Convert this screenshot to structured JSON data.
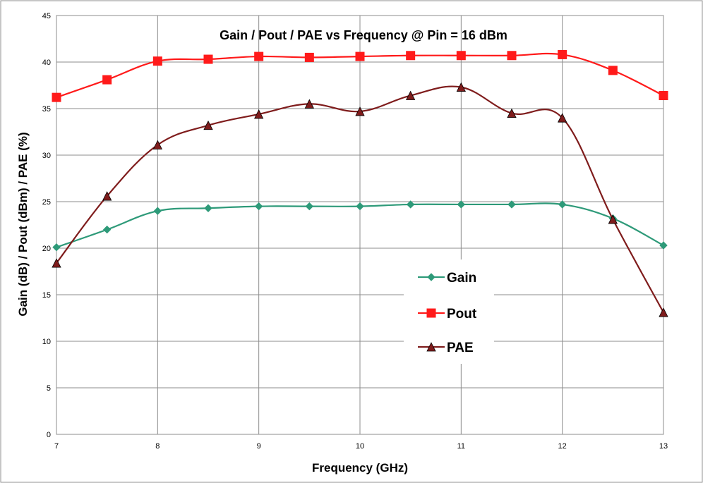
{
  "chart_data": {
    "type": "line",
    "title": "Gain / Pout / PAE vs Frequency @ Pin = 16 dBm",
    "xlabel": "Frequency (GHz)",
    "ylabel": "Gain (dB) / Pout (dBm) / PAE (%)",
    "xlim": [
      7,
      13
    ],
    "ylim": [
      0,
      45
    ],
    "x_ticks": [
      7,
      8,
      9,
      10,
      11,
      12,
      13
    ],
    "y_ticks": [
      0,
      5,
      10,
      15,
      20,
      25,
      30,
      35,
      40,
      45
    ],
    "grid": true,
    "legend_position": "lower-right",
    "x": [
      7,
      7.5,
      8,
      8.5,
      9,
      9.5,
      10,
      10.5,
      11,
      11.5,
      12,
      12.5,
      13
    ],
    "series": [
      {
        "name": "Gain",
        "color": "#2e9a79",
        "marker": "diamond",
        "values": [
          20.1,
          22.0,
          24.0,
          24.3,
          24.5,
          24.5,
          24.5,
          24.7,
          24.7,
          24.7,
          24.7,
          23.2,
          20.3
        ]
      },
      {
        "name": "Pout",
        "color": "#ff1a1a",
        "marker": "square",
        "values": [
          36.2,
          38.1,
          40.1,
          40.3,
          40.6,
          40.5,
          40.6,
          40.7,
          40.7,
          40.7,
          40.8,
          39.1,
          36.4
        ]
      },
      {
        "name": "PAE",
        "color": "#7f1c1c",
        "marker": "triangle",
        "values": [
          18.4,
          25.6,
          31.1,
          33.2,
          34.4,
          35.5,
          34.7,
          36.4,
          37.3,
          34.5,
          34.0,
          23.1,
          13.1
        ]
      }
    ]
  }
}
